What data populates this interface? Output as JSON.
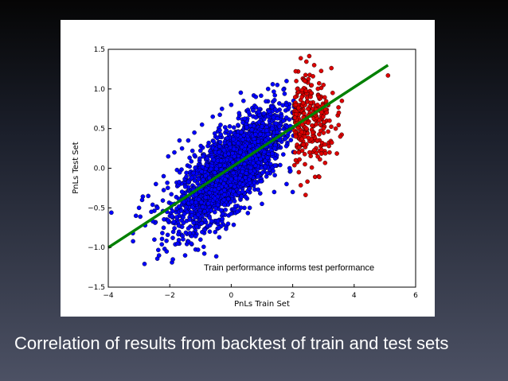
{
  "slide": {
    "caption": "Correlation of results from backtest of train and test sets",
    "background_gradient": [
      "#050505",
      "#1b1f2b",
      "#4c5164"
    ]
  },
  "chart_data": {
    "type": "scatter",
    "xlabel": "PnLs Train Set",
    "ylabel": "PnLs Test Set",
    "xlim": [
      -4,
      6
    ],
    "ylim": [
      -1.5,
      1.5
    ],
    "xticks": [
      "−4",
      "−2",
      "0",
      "2",
      "4",
      "6"
    ],
    "yticks": [
      "−1.5",
      "−1.0",
      "−0.5",
      "0.0",
      "0.5",
      "1.0",
      "1.5"
    ],
    "grid": false,
    "annotation": "Train performance informs test performance",
    "colors": {
      "low_group": "#0000ff",
      "high_group": "#dd0000",
      "fit_line": "#008000"
    },
    "fit_line": {
      "x": [
        -4,
        5.1
      ],
      "y": [
        -1.0,
        1.3
      ]
    },
    "series": [
      {
        "points": [
          [
            -3.9,
            -0.56
          ],
          [
            -3.2,
            -0.82
          ],
          [
            -3.1,
            -0.6
          ],
          [
            -3.0,
            -0.5
          ],
          [
            -2.9,
            -0.4
          ],
          [
            -2.8,
            -0.72
          ],
          [
            -2.7,
            -0.35
          ],
          [
            -2.6,
            -0.55
          ],
          [
            -2.5,
            -0.9
          ],
          [
            -2.45,
            -0.2
          ],
          [
            -2.4,
            -0.5
          ],
          [
            -2.35,
            -1.1
          ],
          [
            -2.2,
            -0.75
          ],
          [
            -2.2,
            -0.1
          ],
          [
            -2.1,
            -1.05
          ],
          [
            -2.05,
            0.15
          ],
          [
            -1.95,
            -0.45
          ],
          [
            -1.9,
            -1.15
          ],
          [
            -1.85,
            0.2
          ],
          [
            -1.75,
            -0.95
          ],
          [
            -1.6,
            0.25
          ],
          [
            -1.5,
            -1.1
          ],
          [
            -1.4,
            0.35
          ],
          [
            -1.3,
            -0.95
          ],
          [
            -1.2,
            0.45
          ],
          [
            -1.0,
            -0.9
          ],
          [
            -0.95,
            0.55
          ],
          [
            -0.7,
            -0.8
          ],
          [
            -0.6,
            0.65
          ],
          [
            -0.4,
            -0.75
          ],
          [
            -0.3,
            0.75
          ],
          [
            -0.1,
            -0.7
          ],
          [
            0.0,
            0.8
          ],
          [
            0.2,
            -0.55
          ],
          [
            0.4,
            0.85
          ],
          [
            0.6,
            -0.5
          ],
          [
            0.8,
            0.9
          ],
          [
            1.0,
            -0.45
          ],
          [
            1.2,
            1.0
          ],
          [
            1.4,
            -0.3
          ],
          [
            1.5,
            1.05
          ],
          [
            1.8,
            -0.2
          ],
          [
            1.8,
            1.1
          ],
          [
            1.9,
            0.0
          ],
          [
            2.0,
            -0.3
          ],
          [
            1.7,
            0.6
          ]
        ]
      },
      {
        "points": [
          [
            2.1,
            0.1
          ],
          [
            2.1,
            0.4
          ],
          [
            2.1,
            0.8
          ],
          [
            2.15,
            1.0
          ],
          [
            2.2,
            0.2
          ],
          [
            2.25,
            0.6
          ],
          [
            2.3,
            0.9
          ],
          [
            2.35,
            0.3
          ],
          [
            2.4,
            1.1
          ],
          [
            2.45,
            0.5
          ],
          [
            2.5,
            0.75
          ],
          [
            2.55,
            0.2
          ],
          [
            2.6,
            0.95
          ],
          [
            2.65,
            0.45
          ],
          [
            2.7,
            1.3
          ],
          [
            2.75,
            0.7
          ],
          [
            2.8,
            0.35
          ],
          [
            2.85,
            0.9
          ],
          [
            2.9,
            0.55
          ],
          [
            3.0,
            1.05
          ],
          [
            3.05,
            0.3
          ],
          [
            3.1,
            0.8
          ],
          [
            3.2,
            0.6
          ],
          [
            3.3,
            0.95
          ],
          [
            3.4,
            0.5
          ],
          [
            3.5,
            0.7
          ],
          [
            3.55,
            0.4
          ],
          [
            3.6,
            0.85
          ],
          [
            3.2,
            0.2
          ],
          [
            5.1,
            1.17
          ],
          [
            2.2,
            -0.05
          ],
          [
            2.4,
            0.05
          ]
        ]
      }
    ]
  }
}
